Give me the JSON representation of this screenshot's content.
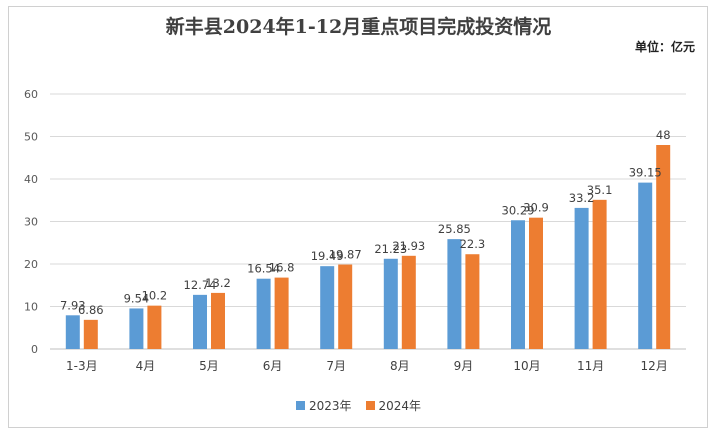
{
  "chart_data": {
    "type": "bar",
    "title": "新丰县2024年1-12月重点项目完成投资情况",
    "unit_label": "单位：亿元",
    "categories": [
      "1-3月",
      "4月",
      "5月",
      "6月",
      "7月",
      "8月",
      "9月",
      "10月",
      "11月",
      "12月"
    ],
    "series": [
      {
        "name": "2023年",
        "color": "#5b9bd5",
        "values": [
          7.93,
          9.54,
          12.74,
          16.54,
          19.49,
          21.23,
          25.85,
          30.29,
          33.2,
          39.15
        ]
      },
      {
        "name": "2024年",
        "color": "#ed7d31",
        "values": [
          6.86,
          10.2,
          13.2,
          16.8,
          19.87,
          21.93,
          22.3,
          30.9,
          35.1,
          48
        ]
      }
    ],
    "ylim": [
      0,
      60
    ],
    "yticks": [
      0,
      10,
      20,
      30,
      40,
      50,
      60
    ],
    "grid": true,
    "legend_position": "bottom"
  }
}
